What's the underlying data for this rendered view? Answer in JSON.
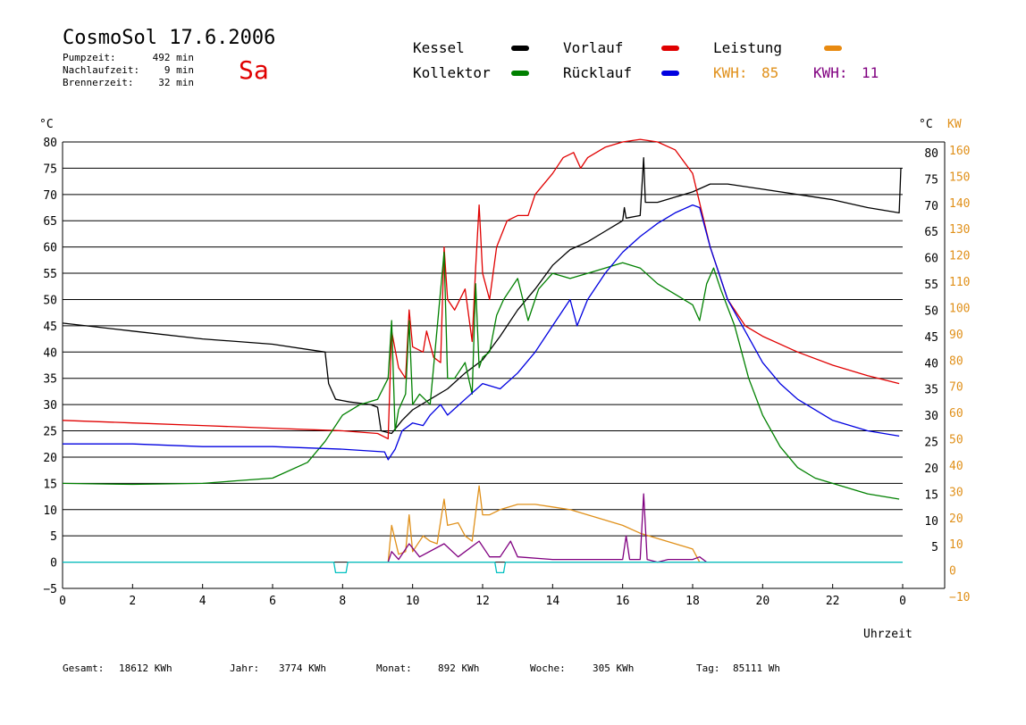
{
  "header": {
    "title": "CosmoSol 17.6.2006",
    "day": "Sa",
    "stats": [
      {
        "label": "Pumpzeit:",
        "value": "492 min"
      },
      {
        "label": "Nachlaufzeit:",
        "value": "9 min"
      },
      {
        "label": "Brennerzeit:",
        "value": "32 min"
      }
    ]
  },
  "legend": [
    {
      "label": "Kessel",
      "color": "#000000"
    },
    {
      "label": "Vorlauf",
      "color": "#e00000"
    },
    {
      "label": "Leistung",
      "color": "#e88a10"
    },
    {
      "label": "Kollektor",
      "color": "#008000"
    },
    {
      "label": "Rücklauf",
      "color": "#0000e0"
    }
  ],
  "kwh": [
    {
      "label": "KWH:",
      "value": "85",
      "color": "#e0901a"
    },
    {
      "label": "KWH:",
      "value": "11",
      "color": "#800080"
    }
  ],
  "footer": [
    {
      "label": "Gesamt:",
      "value": "18612 KWh"
    },
    {
      "label": "Jahr:",
      "value": "3774 KWh"
    },
    {
      "label": "Monat:",
      "value": "892 KWh"
    },
    {
      "label": "Woche:",
      "value": "305 KWh"
    },
    {
      "label": "Tag:",
      "value": "85111 Wh"
    }
  ],
  "chart_data": {
    "type": "line",
    "xlabel": "Uhrzeit",
    "ylabel_left": "°C",
    "ylabel_right_temp": "°C",
    "ylabel_right_power": "KW",
    "xlim": [
      0,
      24
    ],
    "ylim": [
      -5,
      80
    ],
    "power_ylim": [
      -10,
      160
    ],
    "grid": true,
    "x_ticks": [
      "0",
      "2",
      "4",
      "6",
      "8",
      "10",
      "12",
      "14",
      "16",
      "18",
      "20",
      "22",
      "0"
    ],
    "y_ticks": [
      "80",
      "75",
      "70",
      "65",
      "60",
      "55",
      "50",
      "45",
      "40",
      "35",
      "30",
      "25",
      "20",
      "15",
      "10",
      "5",
      "0",
      "−5"
    ],
    "y_ticks_right": [
      "80",
      "75",
      "70",
      "65",
      "60",
      "55",
      "50",
      "45",
      "40",
      "35",
      "30",
      "25",
      "20",
      "15",
      "10",
      "5"
    ],
    "power_ticks": [
      "160",
      "150",
      "140",
      "130",
      "120",
      "110",
      "100",
      "90",
      "80",
      "70",
      "60",
      "50",
      "40",
      "30",
      "20",
      "10",
      "0",
      "−10"
    ],
    "series": [
      {
        "key": "kessel",
        "color": "#000000",
        "points": [
          [
            0,
            45.5
          ],
          [
            2,
            44
          ],
          [
            4,
            42.5
          ],
          [
            6,
            41.5
          ],
          [
            7.5,
            40
          ],
          [
            7.6,
            34
          ],
          [
            7.8,
            31
          ],
          [
            8.2,
            30.5
          ],
          [
            8.8,
            30
          ],
          [
            9,
            29.5
          ],
          [
            9.1,
            25
          ],
          [
            9.4,
            24.5
          ],
          [
            9.7,
            27
          ],
          [
            10,
            29
          ],
          [
            10.5,
            31
          ],
          [
            11,
            33
          ],
          [
            11.5,
            36
          ],
          [
            12,
            38.5
          ],
          [
            12.5,
            43
          ],
          [
            13,
            48
          ],
          [
            13.5,
            52
          ],
          [
            14,
            56.5
          ],
          [
            14.5,
            59.5
          ],
          [
            15,
            61
          ],
          [
            15.5,
            63
          ],
          [
            16,
            65
          ],
          [
            16.05,
            67.5
          ],
          [
            16.1,
            65.5
          ],
          [
            16.5,
            66
          ],
          [
            16.6,
            77
          ],
          [
            16.65,
            68.5
          ],
          [
            17,
            68.5
          ],
          [
            17.5,
            69.5
          ],
          [
            18,
            70.5
          ],
          [
            18.5,
            72
          ],
          [
            19,
            72
          ],
          [
            20,
            71
          ],
          [
            21,
            70
          ],
          [
            22,
            69
          ],
          [
            23,
            67.5
          ],
          [
            23.9,
            66.5
          ],
          [
            23.95,
            75
          ]
        ]
      },
      {
        "key": "vorlauf",
        "color": "#e00000",
        "points": [
          [
            0,
            27
          ],
          [
            2,
            26.5
          ],
          [
            4,
            26
          ],
          [
            6,
            25.5
          ],
          [
            8,
            25
          ],
          [
            9,
            24.5
          ],
          [
            9.3,
            23.5
          ],
          [
            9.4,
            44
          ],
          [
            9.6,
            37
          ],
          [
            9.8,
            35
          ],
          [
            9.9,
            48
          ],
          [
            10,
            41
          ],
          [
            10.3,
            40
          ],
          [
            10.4,
            44
          ],
          [
            10.6,
            39
          ],
          [
            10.8,
            38
          ],
          [
            10.9,
            60
          ],
          [
            11,
            50
          ],
          [
            11.2,
            48
          ],
          [
            11.5,
            52
          ],
          [
            11.7,
            42
          ],
          [
            11.8,
            56
          ],
          [
            11.9,
            68
          ],
          [
            12,
            55
          ],
          [
            12.2,
            50
          ],
          [
            12.4,
            60
          ],
          [
            12.7,
            65
          ],
          [
            13,
            66
          ],
          [
            13.3,
            66
          ],
          [
            13.5,
            70
          ],
          [
            14,
            74
          ],
          [
            14.3,
            77
          ],
          [
            14.6,
            78
          ],
          [
            14.8,
            75
          ],
          [
            15,
            77
          ],
          [
            15.5,
            79
          ],
          [
            16,
            80
          ],
          [
            16.5,
            80.5
          ],
          [
            17,
            80
          ],
          [
            17.5,
            78.5
          ],
          [
            18,
            74
          ],
          [
            18.5,
            60
          ],
          [
            19,
            50
          ],
          [
            19.5,
            45
          ],
          [
            20,
            43
          ],
          [
            21,
            40
          ],
          [
            22,
            37.5
          ],
          [
            23,
            35.5
          ],
          [
            23.9,
            34
          ]
        ]
      },
      {
        "key": "kollektor",
        "color": "#008000",
        "points": [
          [
            0,
            15
          ],
          [
            2,
            14.8
          ],
          [
            4,
            15
          ],
          [
            5,
            15.5
          ],
          [
            6,
            16
          ],
          [
            7,
            19
          ],
          [
            7.5,
            23
          ],
          [
            8,
            28
          ],
          [
            8.5,
            30
          ],
          [
            9,
            31
          ],
          [
            9.3,
            35
          ],
          [
            9.4,
            46
          ],
          [
            9.5,
            25
          ],
          [
            9.6,
            29
          ],
          [
            9.8,
            32
          ],
          [
            9.9,
            46
          ],
          [
            10,
            30
          ],
          [
            10.2,
            32
          ],
          [
            10.5,
            30
          ],
          [
            10.9,
            59
          ],
          [
            11,
            35
          ],
          [
            11.2,
            35
          ],
          [
            11.5,
            38
          ],
          [
            11.7,
            32
          ],
          [
            11.8,
            53
          ],
          [
            11.9,
            37
          ],
          [
            12,
            39
          ],
          [
            12.2,
            40
          ],
          [
            12.4,
            47
          ],
          [
            12.6,
            50
          ],
          [
            12.8,
            52
          ],
          [
            13,
            54
          ],
          [
            13.3,
            46
          ],
          [
            13.6,
            52
          ],
          [
            14,
            55
          ],
          [
            14.5,
            54
          ],
          [
            15,
            55
          ],
          [
            15.5,
            56
          ],
          [
            16,
            57
          ],
          [
            16.5,
            56
          ],
          [
            17,
            53
          ],
          [
            17.5,
            51
          ],
          [
            18,
            49
          ],
          [
            18.2,
            46
          ],
          [
            18.4,
            53
          ],
          [
            18.6,
            56
          ],
          [
            18.8,
            52
          ],
          [
            19.2,
            45
          ],
          [
            19.6,
            35
          ],
          [
            20,
            28
          ],
          [
            20.5,
            22
          ],
          [
            21,
            18
          ],
          [
            21.5,
            16
          ],
          [
            22,
            15
          ],
          [
            22.5,
            14
          ],
          [
            23,
            13
          ],
          [
            23.9,
            12
          ]
        ]
      },
      {
        "key": "ruecklauf",
        "color": "#0000e0",
        "points": [
          [
            0,
            22.5
          ],
          [
            2,
            22.5
          ],
          [
            4,
            22
          ],
          [
            6,
            22
          ],
          [
            8,
            21.5
          ],
          [
            9.2,
            21
          ],
          [
            9.3,
            19.5
          ],
          [
            9.5,
            21.5
          ],
          [
            9.7,
            25
          ],
          [
            10,
            26.5
          ],
          [
            10.3,
            26
          ],
          [
            10.5,
            28
          ],
          [
            10.8,
            30
          ],
          [
            11,
            28
          ],
          [
            11.5,
            31
          ],
          [
            12,
            34
          ],
          [
            12.5,
            33
          ],
          [
            13,
            36
          ],
          [
            13.5,
            40
          ],
          [
            14,
            45
          ],
          [
            14.5,
            50
          ],
          [
            14.7,
            45
          ],
          [
            15,
            50
          ],
          [
            15.5,
            55
          ],
          [
            16,
            59
          ],
          [
            16.5,
            62
          ],
          [
            17,
            64.5
          ],
          [
            17.5,
            66.5
          ],
          [
            18,
            68
          ],
          [
            18.2,
            67.5
          ],
          [
            18.5,
            60
          ],
          [
            19,
            50
          ],
          [
            19.5,
            44
          ],
          [
            20,
            38
          ],
          [
            20.5,
            34
          ],
          [
            21,
            31
          ],
          [
            22,
            27
          ],
          [
            23,
            25
          ],
          [
            23.9,
            24
          ]
        ]
      },
      {
        "key": "leistung",
        "color": "#e0901a",
        "axis": "power",
        "points": [
          [
            9.3,
            0
          ],
          [
            9.4,
            14
          ],
          [
            9.6,
            3
          ],
          [
            9.8,
            4
          ],
          [
            9.9,
            18
          ],
          [
            10,
            4
          ],
          [
            10.3,
            10
          ],
          [
            10.5,
            8
          ],
          [
            10.7,
            7
          ],
          [
            10.9,
            24
          ],
          [
            11,
            14
          ],
          [
            11.3,
            15
          ],
          [
            11.5,
            10
          ],
          [
            11.7,
            8
          ],
          [
            11.9,
            29
          ],
          [
            12,
            18
          ],
          [
            12.2,
            18
          ],
          [
            12.5,
            20
          ],
          [
            13,
            22
          ],
          [
            13.5,
            22
          ],
          [
            14,
            21
          ],
          [
            14.5,
            20
          ],
          [
            15,
            18
          ],
          [
            15.5,
            16
          ],
          [
            16,
            14
          ],
          [
            16.5,
            11
          ],
          [
            17,
            9
          ],
          [
            17.5,
            7
          ],
          [
            18,
            5
          ],
          [
            18.2,
            0
          ]
        ]
      },
      {
        "key": "leistung2",
        "color": "#800080",
        "axis": "power",
        "points": [
          [
            9.3,
            0
          ],
          [
            9.4,
            4
          ],
          [
            9.6,
            1
          ],
          [
            9.9,
            7
          ],
          [
            10.2,
            2
          ],
          [
            10.9,
            7
          ],
          [
            11.3,
            2
          ],
          [
            11.9,
            8
          ],
          [
            12.2,
            2
          ],
          [
            12.5,
            2
          ],
          [
            12.8,
            8
          ],
          [
            13,
            2
          ],
          [
            14,
            1
          ],
          [
            15,
            1
          ],
          [
            16,
            1
          ],
          [
            16.1,
            10
          ],
          [
            16.2,
            1
          ],
          [
            16.5,
            1
          ],
          [
            16.6,
            26
          ],
          [
            16.7,
            1
          ],
          [
            17,
            0
          ],
          [
            17.3,
            1
          ],
          [
            18,
            1
          ],
          [
            18.2,
            2
          ],
          [
            18.4,
            0
          ]
        ]
      },
      {
        "key": "pumpe",
        "color": "#00c0c0",
        "points": [
          [
            0,
            0
          ],
          [
            7.75,
            0
          ],
          [
            7.8,
            -2
          ],
          [
            8.1,
            -2
          ],
          [
            8.15,
            0
          ],
          [
            12.35,
            0
          ],
          [
            12.4,
            -2
          ],
          [
            12.6,
            -2
          ],
          [
            12.65,
            0
          ],
          [
            24,
            0
          ]
        ]
      }
    ]
  }
}
